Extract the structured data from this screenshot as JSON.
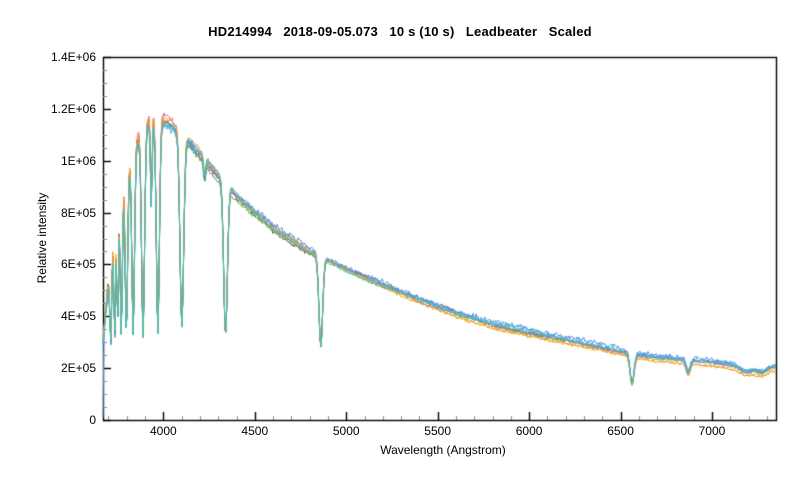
{
  "window": {
    "background": "#ffffff",
    "text_color": "#000000"
  },
  "chart_data": {
    "type": "line",
    "title": "HD214994   2018-09-05.073   10 s (10 s)   Leadbeater   Scaled",
    "xlabel": "Wavelength (Angstrom)",
    "ylabel": "Relative intensity",
    "xlim": [
      3670,
      7350
    ],
    "ylim": [
      0,
      1400000
    ],
    "grid": false,
    "legend": "none",
    "axis_color": "#000000",
    "minor_tick_color": "#8a8a8a",
    "x_ticks": [
      {
        "v": 4000,
        "label": "4000"
      },
      {
        "v": 4500,
        "label": "4500"
      },
      {
        "v": 5000,
        "label": "5000"
      },
      {
        "v": 5500,
        "label": "5500"
      },
      {
        "v": 6000,
        "label": "6000"
      },
      {
        "v": 6500,
        "label": "6500"
      },
      {
        "v": 7000,
        "label": "7000"
      }
    ],
    "x_minor_step": 100,
    "y_ticks": [
      {
        "v": 0,
        "label": "0"
      },
      {
        "v": 200000,
        "label": "2E+05"
      },
      {
        "v": 400000,
        "label": "4E+05"
      },
      {
        "v": 600000,
        "label": "6E+05"
      },
      {
        "v": 800000,
        "label": "8E+05"
      },
      {
        "v": 1000000,
        "label": "1E+06"
      },
      {
        "v": 1200000,
        "label": "1.2E+06"
      },
      {
        "v": 1400000,
        "label": "1.4E+06"
      }
    ],
    "y_minor_step": 50000,
    "description": "Overlay of nine scaled exposures of HD214994: blue-peaked stellar continuum declining to the red, deep hydrogen Balmer absorption lines, Ca II K line, H-alpha, and telluric O2/H2O bands.",
    "continuum_points": [
      [
        3670,
        300000
      ],
      [
        3690,
        450000
      ],
      [
        3720,
        620000
      ],
      [
        3760,
        800000
      ],
      [
        3800,
        930000
      ],
      [
        3850,
        1060000
      ],
      [
        3900,
        1130000
      ],
      [
        3950,
        1155000
      ],
      [
        4000,
        1150000
      ],
      [
        4050,
        1130000
      ],
      [
        4150,
        1060000
      ],
      [
        4250,
        980000
      ],
      [
        4400,
        860000
      ],
      [
        4600,
        735000
      ],
      [
        4800,
        645000
      ],
      [
        5000,
        580000
      ],
      [
        5200,
        520000
      ],
      [
        5400,
        465000
      ],
      [
        5600,
        415000
      ],
      [
        5800,
        370000
      ],
      [
        6000,
        340000
      ],
      [
        6200,
        310000
      ],
      [
        6400,
        280000
      ],
      [
        6600,
        250000
      ],
      [
        6800,
        235000
      ],
      [
        7000,
        225000
      ],
      [
        7100,
        215000
      ],
      [
        7200,
        205000
      ],
      [
        7300,
        200000
      ],
      [
        7350,
        210000
      ]
    ],
    "absorption_lines": [
      {
        "center": 3712,
        "depth": 0.52,
        "sigma": 4
      },
      {
        "center": 3734,
        "depth": 0.56,
        "sigma": 4
      },
      {
        "center": 3750,
        "depth": 0.52,
        "sigma": 4
      },
      {
        "center": 3770,
        "depth": 0.62,
        "sigma": 5
      },
      {
        "center": 3798,
        "depth": 0.65,
        "sigma": 6
      },
      {
        "center": 3835,
        "depth": 0.68,
        "sigma": 7
      },
      {
        "center": 3889,
        "depth": 0.71,
        "sigma": 8
      },
      {
        "center": 3934,
        "depth": 0.3,
        "sigma": 4
      },
      {
        "center": 3970,
        "depth": 0.71,
        "sigma": 8
      },
      {
        "center": 4101,
        "depth": 0.67,
        "sigma": 10
      },
      {
        "center": 4226,
        "depth": 0.07,
        "sigma": 5
      },
      {
        "center": 4340,
        "depth": 0.64,
        "sigma": 10
      },
      {
        "center": 4861,
        "depth": 0.55,
        "sigma": 10
      },
      {
        "center": 6563,
        "depth": 0.45,
        "sigma": 11
      },
      {
        "center": 6870,
        "depth": 0.21,
        "sigma": 11
      },
      {
        "center": 7190,
        "depth": 0.09,
        "sigma": 35
      },
      {
        "center": 7270,
        "depth": 0.08,
        "sigma": 20
      }
    ],
    "noise": {
      "base": 0.013,
      "red_slope": 0.022,
      "blue_edge": 0.06
    },
    "series": [
      {
        "name": "trace-gray",
        "color": "#4e5358",
        "tilt": 0.0,
        "scale": 1.0,
        "noise": 1.0,
        "seed": 11,
        "edge_drop": false
      },
      {
        "name": "trace-gold",
        "color": "#e3b428",
        "tilt": 0.045,
        "scale": 0.99,
        "noise": 1.0,
        "seed": 23,
        "edge_drop": false
      },
      {
        "name": "trace-magenta",
        "color": "#df66b4",
        "tilt": 0.025,
        "scale": 1.005,
        "noise": 1.0,
        "seed": 37,
        "edge_drop": false
      },
      {
        "name": "trace-purple",
        "color": "#8f75d8",
        "tilt": 0.012,
        "scale": 1.0,
        "noise": 1.05,
        "seed": 53,
        "edge_drop": false
      },
      {
        "name": "trace-green",
        "color": "#5aad52",
        "tilt": 0.0,
        "scale": 0.992,
        "noise": 1.0,
        "seed": 67,
        "edge_drop": false
      },
      {
        "name": "trace-lightblue",
        "color": "#6fb1ec",
        "tilt": -0.01,
        "scale": 1.005,
        "noise": 1.3,
        "seed": 131,
        "edge_drop": false
      },
      {
        "name": "trace-blue",
        "color": "#4f8fe3",
        "tilt": -0.02,
        "scale": 1.015,
        "noise": 1.55,
        "seed": 79,
        "edge_drop": true
      },
      {
        "name": "trace-orange",
        "color": "#f59c1c",
        "tilt": 0.065,
        "scale": 1.0,
        "noise": 1.05,
        "seed": 97,
        "edge_drop": false
      },
      {
        "name": "trace-teal",
        "color": "#41bfb8",
        "tilt": 0.0,
        "scale": 1.0,
        "noise": 1.1,
        "seed": 113,
        "edge_drop": false
      }
    ]
  }
}
